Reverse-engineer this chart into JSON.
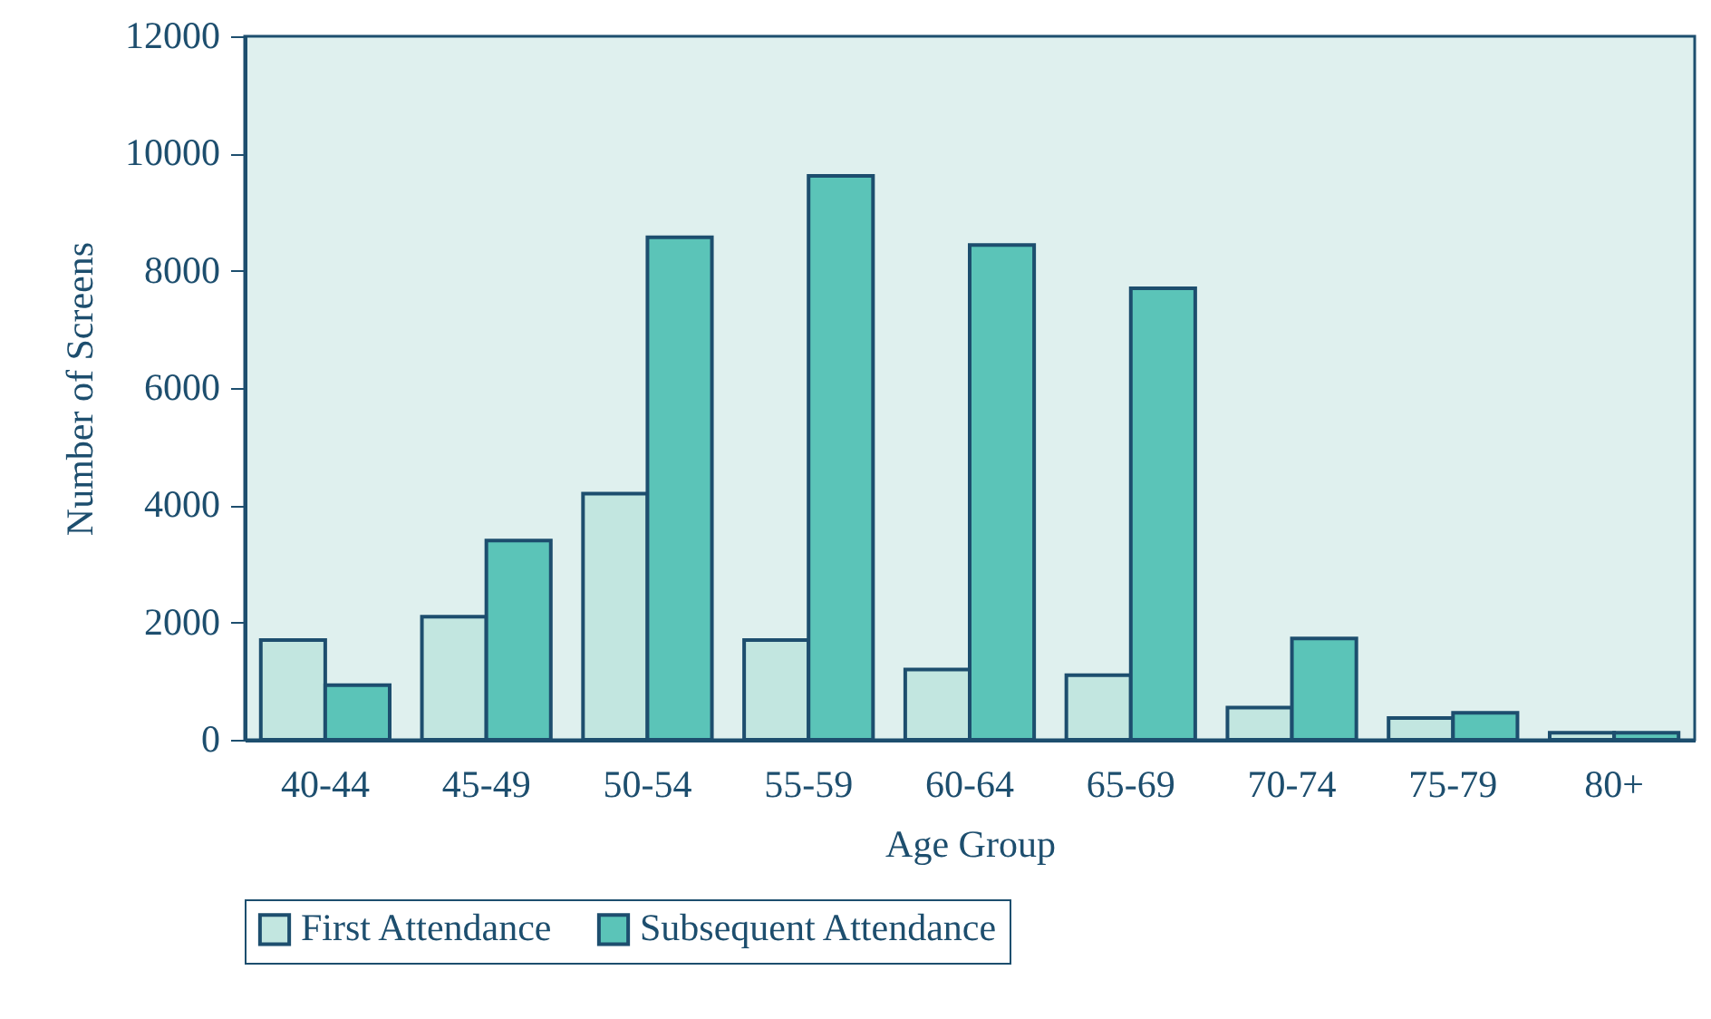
{
  "chart_data": {
    "type": "bar",
    "xlabel": "Age Group",
    "ylabel": "Number of Screens",
    "categories": [
      "40-44",
      "45-49",
      "50-54",
      "55-59",
      "60-64",
      "65-69",
      "70-74",
      "75-79",
      "80+"
    ],
    "series": [
      {
        "name": "First Attendance",
        "color": "#c2e6e0",
        "values": [
          1700,
          2100,
          4200,
          1700,
          1200,
          1100,
          550,
          370,
          120
        ]
      },
      {
        "name": "Subsequent Attendance",
        "color": "#5bc4b8",
        "values": [
          930,
          3400,
          8570,
          9620,
          8440,
          7700,
          1730,
          460,
          120
        ]
      }
    ],
    "ylim": [
      0,
      12000
    ],
    "yticks": [
      0,
      2000,
      4000,
      6000,
      8000,
      10000,
      12000
    ],
    "grid": false,
    "legend": "bottom"
  }
}
